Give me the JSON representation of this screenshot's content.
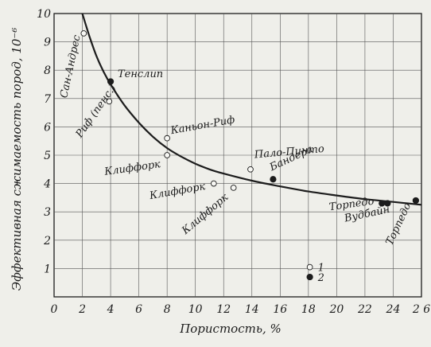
{
  "chart_data": {
    "type": "scatter",
    "xlabel": "Пористость, %",
    "ylabel": "Эффективная сжимаемость пород, 10⁻⁶",
    "xlim": [
      0,
      26
    ],
    "ylim": [
      0,
      10
    ],
    "xticks": [
      0,
      2,
      4,
      6,
      8,
      10,
      12,
      14,
      16,
      18,
      20,
      22,
      24,
      26
    ],
    "xtick_labels": [
      "0",
      "2",
      "4",
      "6",
      "8",
      "10",
      "12",
      "14",
      "16",
      "18",
      "20",
      "22",
      "24",
      "2 6"
    ],
    "yticks": [
      1,
      2,
      3,
      4,
      5,
      6,
      7,
      8,
      9,
      10
    ],
    "ytick_labels": [
      "1",
      "2",
      "3",
      "4",
      "5",
      "6",
      "7",
      "8",
      "9",
      "10"
    ],
    "grid": true,
    "series": [
      {
        "name": "1",
        "marker": "open-circle",
        "points": [
          {
            "x": 2.1,
            "y": 9.3,
            "label": "Сан-Андрес"
          },
          {
            "x": 3.9,
            "y": 6.9,
            "label": "Риф (пенс.)"
          },
          {
            "x": 8.0,
            "y": 5.6,
            "label": "Каньон-Риф"
          },
          {
            "x": 8.0,
            "y": 5.0,
            "label": "Клиффорк"
          },
          {
            "x": 11.3,
            "y": 4.0,
            "label": "Клиффорк"
          },
          {
            "x": 12.7,
            "y": 3.85,
            "label": "Клиффорк"
          },
          {
            "x": 13.9,
            "y": 4.5,
            "label": "Пало-Пинто"
          }
        ]
      },
      {
        "name": "2",
        "marker": "filled-circle",
        "points": [
          {
            "x": 4.0,
            "y": 7.6,
            "label": "Тенслип"
          },
          {
            "x": 15.5,
            "y": 4.15,
            "label": "Бандера"
          },
          {
            "x": 23.2,
            "y": 3.3,
            "label": "Вудбайн"
          },
          {
            "x": 23.6,
            "y": 3.3,
            "label": ""
          },
          {
            "x": 25.6,
            "y": 3.4,
            "label": "Торпедо"
          }
        ]
      }
    ],
    "curve": {
      "x": [
        2.0,
        2.5,
        3.0,
        3.5,
        4.0,
        5.0,
        6.0,
        7.0,
        8.0,
        9.0,
        10.0,
        11.0,
        12.0,
        14.0,
        16.0,
        18.0,
        20.0,
        22.0,
        24.0,
        26.0
      ],
      "y": [
        10.0,
        9.2,
        8.5,
        7.95,
        7.5,
        6.75,
        6.15,
        5.65,
        5.25,
        4.95,
        4.7,
        4.5,
        4.35,
        4.1,
        3.9,
        3.72,
        3.58,
        3.45,
        3.35,
        3.25
      ]
    },
    "annotations": [
      {
        "text": "Сан-Андрес",
        "x": 0.9,
        "y": 7.0,
        "rotate": -78
      },
      {
        "text": "Тенслип",
        "x": 4.5,
        "y": 7.75,
        "rotate": 0
      },
      {
        "text": "Риф (пенс.)",
        "x": 1.9,
        "y": 5.6,
        "rotate": -55
      },
      {
        "text": "Каньон-Риф",
        "x": 8.3,
        "y": 5.75,
        "rotate": -10
      },
      {
        "text": "Клиффорк",
        "x": 3.6,
        "y": 4.3,
        "rotate": -8
      },
      {
        "text": "Клиффорк",
        "x": 6.8,
        "y": 3.45,
        "rotate": -10
      },
      {
        "text": "Клиффорк",
        "x": 9.3,
        "y": 2.2,
        "rotate": -40
      },
      {
        "text": "Пало-Пинто",
        "x": 14.2,
        "y": 4.9,
        "rotate": -5
      },
      {
        "text": "Бандера",
        "x": 15.4,
        "y": 4.45,
        "rotate": -25
      },
      {
        "text": "Торпедо",
        "x": 19.5,
        "y": 3.05,
        "rotate": -8
      },
      {
        "text": "Вудбайн",
        "x": 20.6,
        "y": 2.65,
        "rotate": -12
      },
      {
        "text": "Торпедо",
        "x": 23.9,
        "y": 1.8,
        "rotate": -65
      }
    ],
    "legend": [
      {
        "marker": "open-circle",
        "text": "1",
        "x": 18.1,
        "y": 1.05
      },
      {
        "marker": "filled-circle",
        "text": "2",
        "x": 18.1,
        "y": 0.7
      }
    ]
  }
}
